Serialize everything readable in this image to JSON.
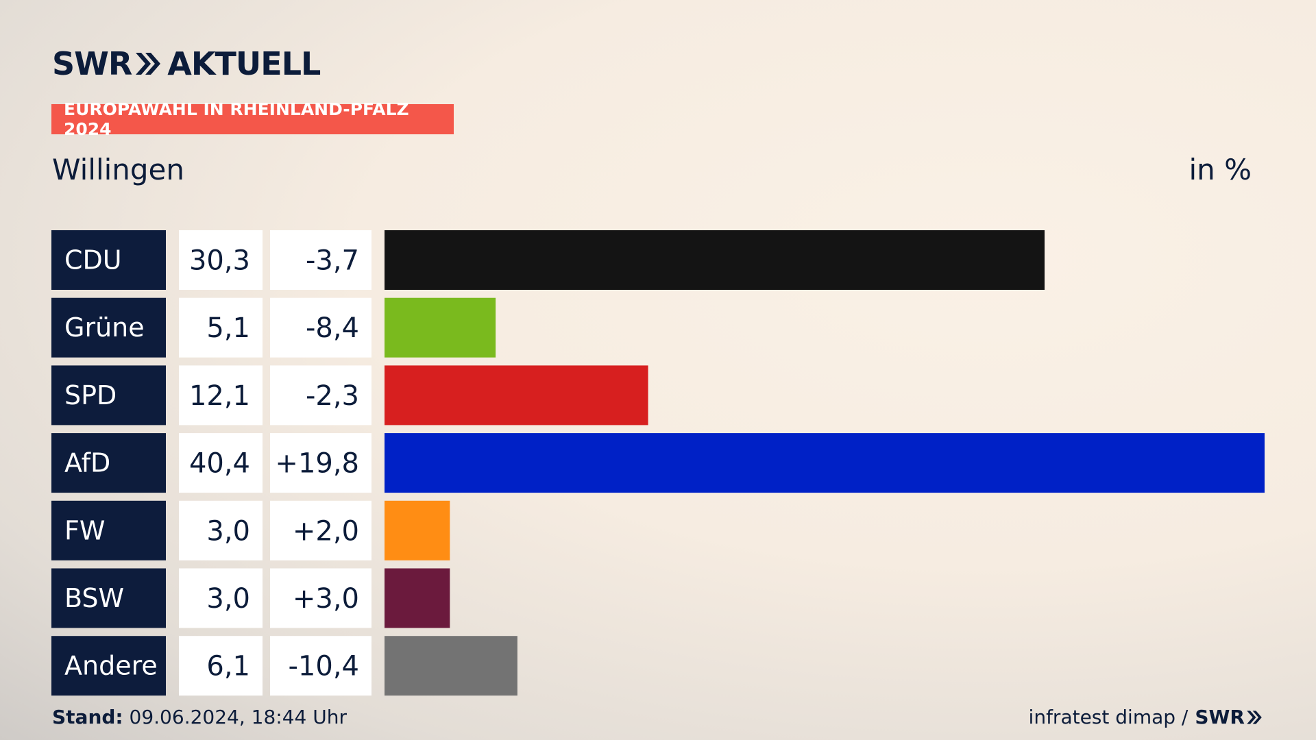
{
  "logo": {
    "brand": "SWR",
    "product": "AKTUELL"
  },
  "badge": "EUROPAWAHL IN RHEINLAND-PFALZ 2024",
  "header": {
    "location": "Willingen",
    "unit": "in %"
  },
  "chart_data": {
    "type": "bar",
    "orientation": "horizontal",
    "categories": [
      "CDU",
      "Grüne",
      "SPD",
      "AfD",
      "FW",
      "BSW",
      "Andere"
    ],
    "series": [
      {
        "values": [
          30.3,
          5.1,
          12.1,
          40.4,
          3.0,
          3.0,
          6.1
        ]
      }
    ],
    "value_labels": [
      "30,3",
      "5,1",
      "12,1",
      "40,4",
      "3,0",
      "3,0",
      "6,1"
    ],
    "change_labels": [
      "-3,7",
      "-8,4",
      "-2,3",
      "+19,8",
      "+2,0",
      "+3,0",
      "-10,4"
    ],
    "colors": [
      "#141414",
      "#7aba1e",
      "#d71f1f",
      "#0021c6",
      "#ff8d14",
      "#6b1a3d",
      "#737373"
    ],
    "xlim": [
      0,
      40.4
    ]
  },
  "footer": {
    "stand_label": "Stand:",
    "stand_value": "09.06.2024, 18:44 Uhr",
    "source": "infratest dimap /",
    "source_brand": "SWR"
  }
}
